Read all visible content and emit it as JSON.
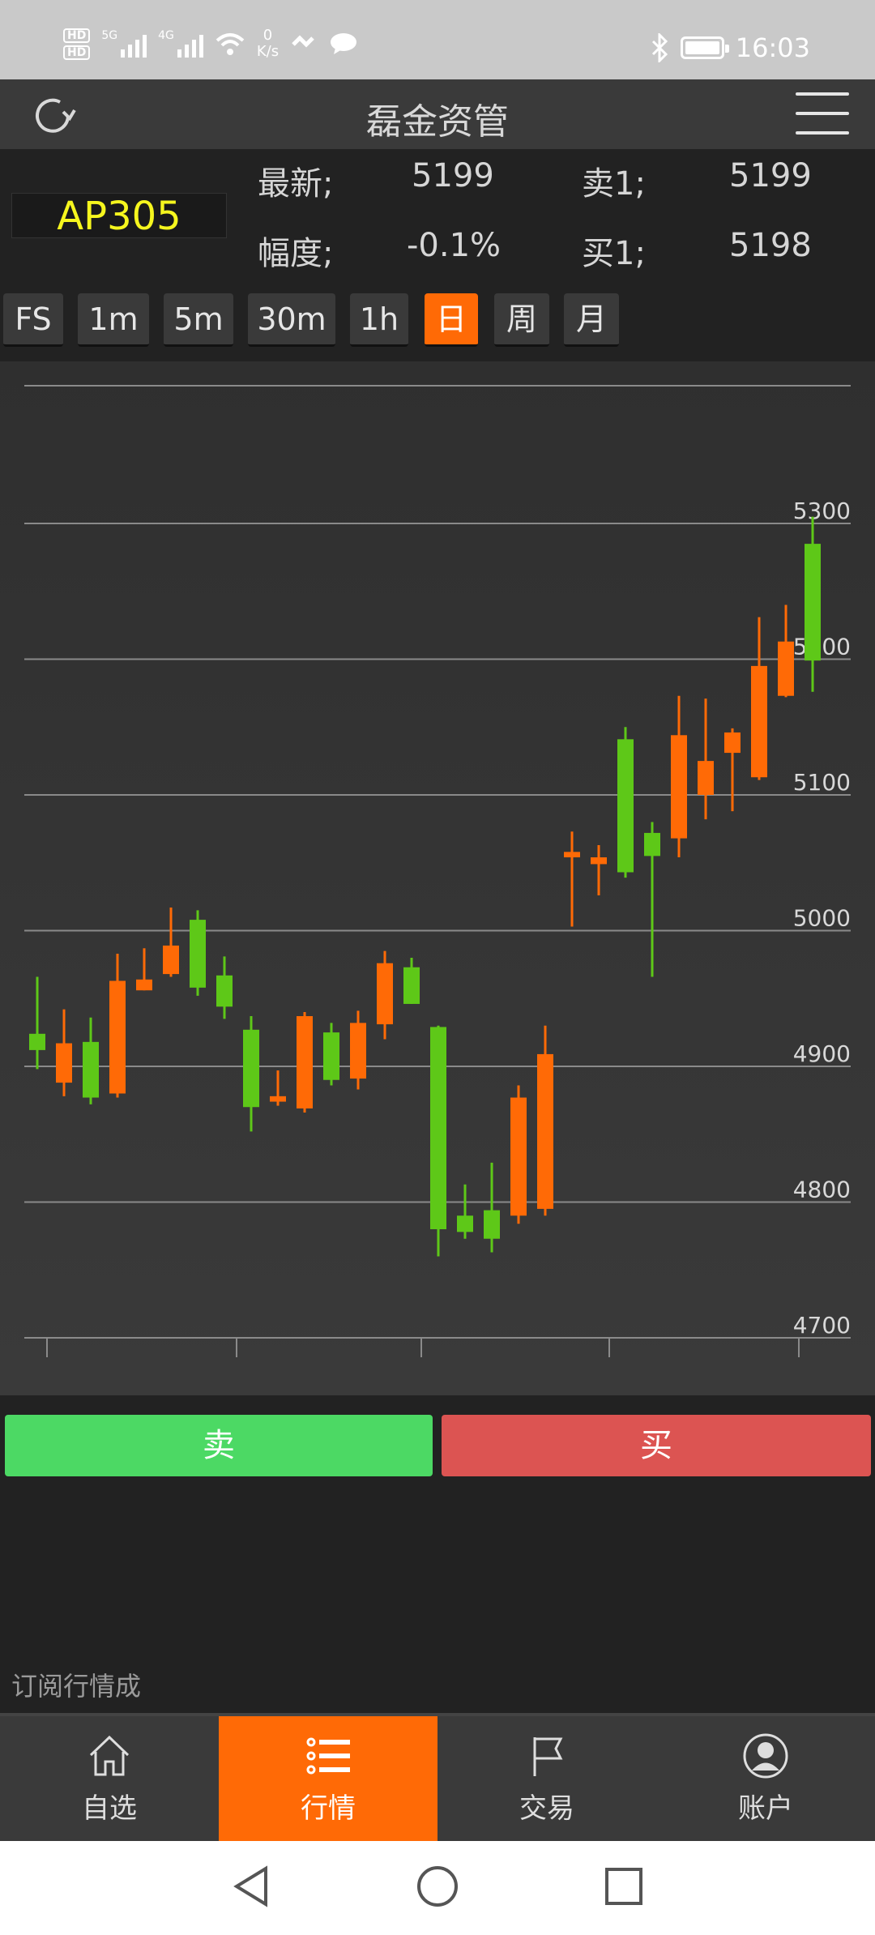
{
  "status_bar": {
    "time": "16:03",
    "hd1": "HD",
    "hd2": "HD",
    "net1": "5G",
    "net2": "4G",
    "speed_value": "0",
    "speed_unit": "K/s"
  },
  "header": {
    "title": "磊金资管"
  },
  "quote": {
    "symbol": "AP305",
    "latest_label": "最新;",
    "latest_value": "5199",
    "change_label": "幅度;",
    "change_value": "-0.1%",
    "ask_label": "卖1;",
    "ask_value": "5199",
    "bid_label": "买1;",
    "bid_value": "5198"
  },
  "tabs": [
    "FS",
    "1m",
    "5m",
    "30m",
    "1h",
    "日",
    "周",
    "月"
  ],
  "active_tab": "日",
  "chart_data": {
    "type": "candlestick",
    "y_ticks": [
      "5300",
      "5200",
      "5100",
      "5000",
      "4900",
      "4800",
      "4700"
    ],
    "ylim": [
      4700,
      5300
    ],
    "grid": true,
    "up_color": "#ff6a06",
    "down_color": "#5ec818",
    "candles": [
      {
        "o": 4924,
        "h": 4966,
        "l": 4898,
        "c": 4912
      },
      {
        "o": 4888,
        "h": 4942,
        "l": 4878,
        "c": 4917
      },
      {
        "o": 4918,
        "h": 4936,
        "l": 4872,
        "c": 4877
      },
      {
        "o": 4880,
        "h": 4983,
        "l": 4877,
        "c": 4963
      },
      {
        "o": 4956,
        "h": 4987,
        "l": 4956,
        "c": 4964
      },
      {
        "o": 4968,
        "h": 5017,
        "l": 4966,
        "c": 4989
      },
      {
        "o": 5008,
        "h": 5015,
        "l": 4952,
        "c": 4958
      },
      {
        "o": 4967,
        "h": 4981,
        "l": 4935,
        "c": 4944
      },
      {
        "o": 4927,
        "h": 4937,
        "l": 4852,
        "c": 4870
      },
      {
        "o": 4874,
        "h": 4897,
        "l": 4871,
        "c": 4878
      },
      {
        "o": 4869,
        "h": 4940,
        "l": 4866,
        "c": 4937
      },
      {
        "o": 4925,
        "h": 4932,
        "l": 4886,
        "c": 4890
      },
      {
        "o": 4891,
        "h": 4941,
        "l": 4883,
        "c": 4932
      },
      {
        "o": 4931,
        "h": 4985,
        "l": 4920,
        "c": 4976
      },
      {
        "o": 4973,
        "h": 4980,
        "l": 4946,
        "c": 4946
      },
      {
        "o": 4929,
        "h": 4930,
        "l": 4760,
        "c": 4780
      },
      {
        "o": 4790,
        "h": 4813,
        "l": 4773,
        "c": 4778
      },
      {
        "o": 4794,
        "h": 4829,
        "l": 4763,
        "c": 4773
      },
      {
        "o": 4790,
        "h": 4886,
        "l": 4784,
        "c": 4877
      },
      {
        "o": 4795,
        "h": 4930,
        "l": 4790,
        "c": 4909
      },
      {
        "o": 5054,
        "h": 5073,
        "l": 5003,
        "c": 5058
      },
      {
        "o": 5049,
        "h": 5063,
        "l": 5026,
        "c": 5054
      },
      {
        "o": 5141,
        "h": 5150,
        "l": 5039,
        "c": 5043
      },
      {
        "o": 5072,
        "h": 5080,
        "l": 4966,
        "c": 5055
      },
      {
        "o": 5068,
        "h": 5173,
        "l": 5054,
        "c": 5144
      },
      {
        "o": 5100,
        "h": 5171,
        "l": 5082,
        "c": 5125
      },
      {
        "o": 5131,
        "h": 5149,
        "l": 5088,
        "c": 5146
      },
      {
        "o": 5113,
        "h": 5231,
        "l": 5111,
        "c": 5195
      },
      {
        "o": 5173,
        "h": 5240,
        "l": 5172,
        "c": 5213
      },
      {
        "o": 5285,
        "h": 5305,
        "l": 5176,
        "c": 5199
      }
    ]
  },
  "actions": {
    "sell_label": "卖",
    "buy_label": "买"
  },
  "subscribe_text": "订阅行情成",
  "bottom_nav": [
    {
      "label": "自选",
      "icon": "home-icon"
    },
    {
      "label": "行情",
      "icon": "list-icon"
    },
    {
      "label": "交易",
      "icon": "flag-icon"
    },
    {
      "label": "账户",
      "icon": "user-icon"
    }
  ],
  "active_nav": "行情"
}
